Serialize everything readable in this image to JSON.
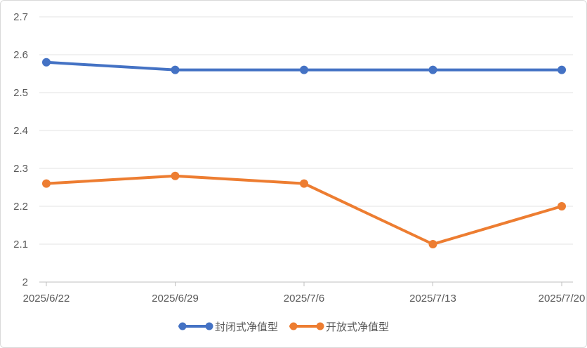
{
  "chart_data": {
    "type": "line",
    "title": "",
    "xlabel": "",
    "ylabel": "",
    "categories": [
      "2025/6/22",
      "2025/6/29",
      "2025/7/6",
      "2025/7/13",
      "2025/7/20"
    ],
    "ylim": [
      2,
      2.7
    ],
    "yticks": [
      "2",
      "2.1",
      "2.2",
      "2.3",
      "2.4",
      "2.5",
      "2.6",
      "2.7"
    ],
    "grid": true,
    "legend_position": "bottom",
    "series": [
      {
        "name": "封闭式净值型",
        "color": "#4472c4",
        "values": [
          2.58,
          2.56,
          2.56,
          2.56,
          2.56
        ]
      },
      {
        "name": "开放式净值型",
        "color": "#ed7d31",
        "values": [
          2.26,
          2.28,
          2.26,
          2.1,
          2.2
        ]
      }
    ]
  }
}
